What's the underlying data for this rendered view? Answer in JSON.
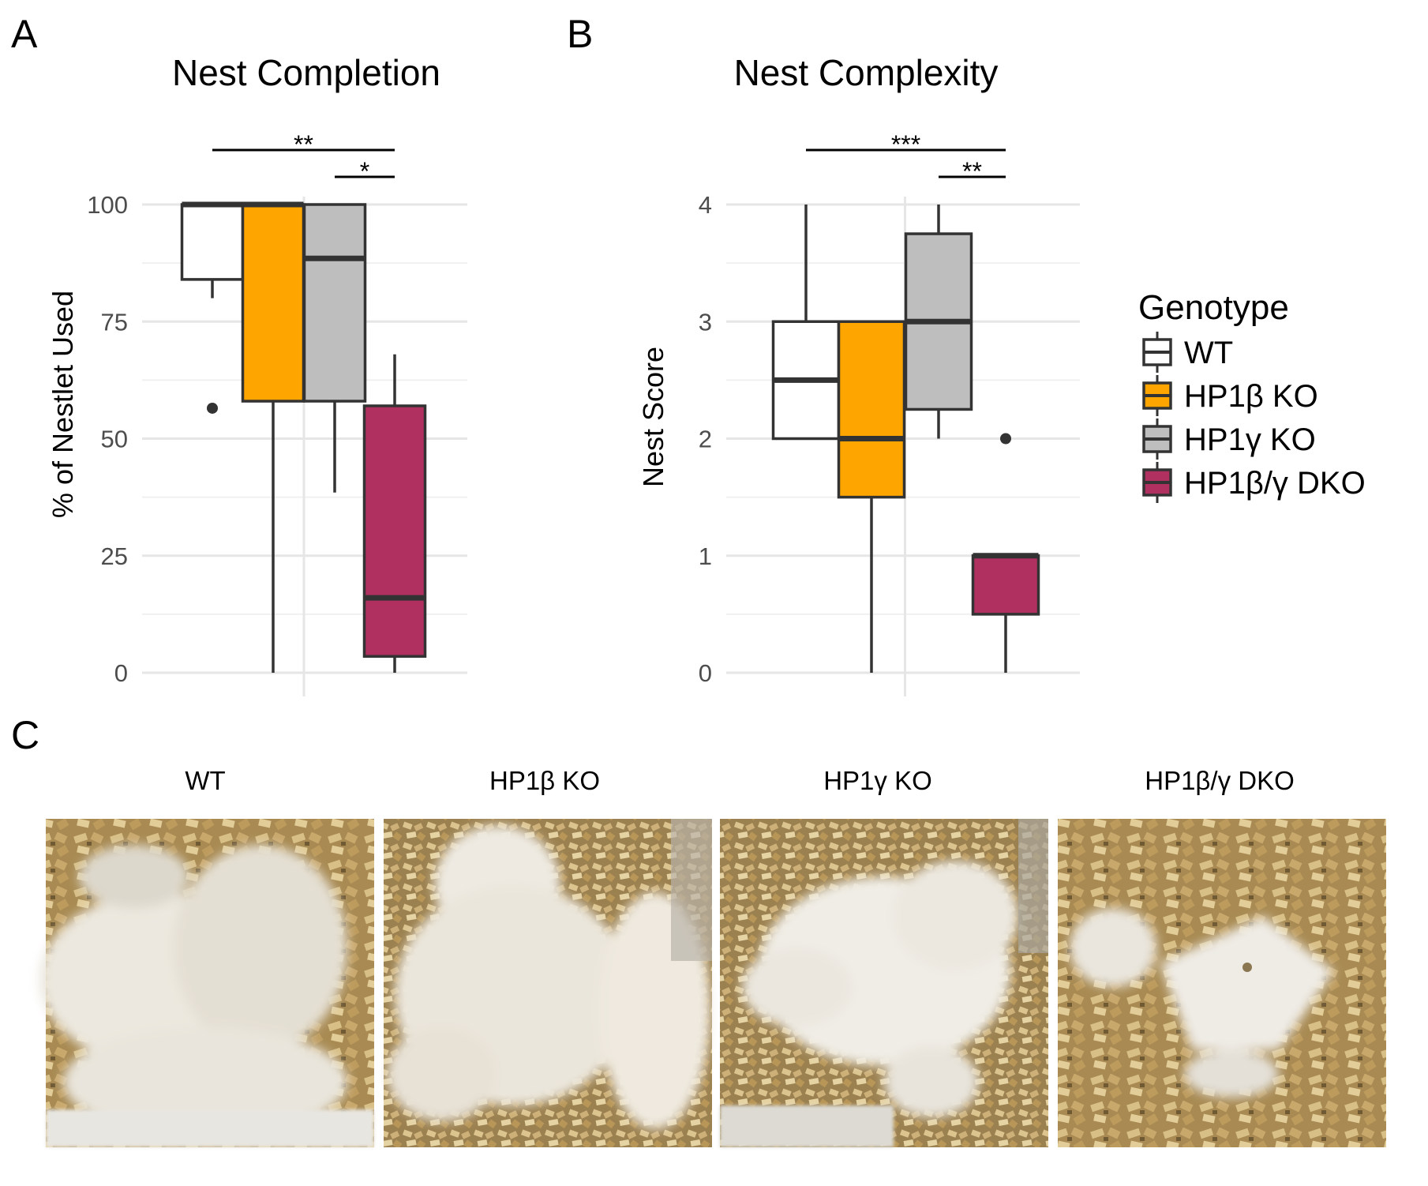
{
  "panels": {
    "a": "A",
    "b": "B",
    "c": "C"
  },
  "legend": {
    "title": "Genotype",
    "items": [
      {
        "label": "WT",
        "color": "#ffffff"
      },
      {
        "label": "HP1β KO",
        "color": "#ffa500"
      },
      {
        "label": "HP1γ KO",
        "color": "#bebebe"
      },
      {
        "label": "HP1β/γ DKO",
        "color": "#b03060"
      }
    ]
  },
  "chart_data": [
    {
      "type": "box",
      "title": "Nest Completion",
      "ylabel": "% of Nestlet Used",
      "xlabel": "",
      "ylim": [
        0,
        100
      ],
      "yticks": [
        0,
        25,
        50,
        75,
        100
      ],
      "grid": true,
      "series": [
        {
          "name": "WT",
          "min": 80,
          "q1": 84,
          "median": 100,
          "q3": 100,
          "max": 100,
          "outliers": [
            56.5
          ]
        },
        {
          "name": "HP1β KO",
          "min": 0,
          "q1": 58,
          "median": 100,
          "q3": 100,
          "max": 100,
          "outliers": []
        },
        {
          "name": "HP1γ KO",
          "min": 38.5,
          "q1": 58,
          "median": 88.5,
          "q3": 100,
          "max": 100,
          "outliers": []
        },
        {
          "name": "HP1β/γ DKO",
          "min": 0,
          "q1": 3.5,
          "median": 16,
          "q3": 57,
          "max": 68,
          "outliers": []
        }
      ],
      "significance": [
        {
          "from": "WT",
          "to": "HP1β/γ DKO",
          "label": "**"
        },
        {
          "from": "HP1γ KO",
          "to": "HP1β/γ DKO",
          "label": "*"
        }
      ]
    },
    {
      "type": "box",
      "title": "Nest Complexity",
      "ylabel": "Nest Score",
      "xlabel": "",
      "ylim": [
        0,
        4
      ],
      "yticks": [
        0,
        1,
        2,
        3,
        4
      ],
      "grid": true,
      "series": [
        {
          "name": "WT",
          "min": 2,
          "q1": 2,
          "median": 2.5,
          "q3": 3,
          "max": 4,
          "outliers": []
        },
        {
          "name": "HP1β KO",
          "min": 0,
          "q1": 1.5,
          "median": 2,
          "q3": 3,
          "max": 3,
          "outliers": []
        },
        {
          "name": "HP1γ KO",
          "min": 2,
          "q1": 2.25,
          "median": 3,
          "q3": 3.75,
          "max": 4,
          "outliers": []
        },
        {
          "name": "HP1β/γ DKO",
          "min": 0,
          "q1": 0.5,
          "median": 1,
          "q3": 1,
          "max": 1,
          "outliers": [
            2
          ]
        }
      ],
      "significance": [
        {
          "from": "WT",
          "to": "HP1β/γ DKO",
          "label": "***"
        },
        {
          "from": "HP1γ KO",
          "to": "HP1β/γ DKO",
          "label": "**"
        }
      ]
    }
  ],
  "photos": [
    {
      "label": "WT",
      "icon": "nest-photo"
    },
    {
      "label": "HP1β KO",
      "icon": "nest-photo"
    },
    {
      "label": "HP1γ KO",
      "icon": "nest-photo"
    },
    {
      "label": "HP1β/γ DKO",
      "icon": "nest-photo"
    }
  ]
}
